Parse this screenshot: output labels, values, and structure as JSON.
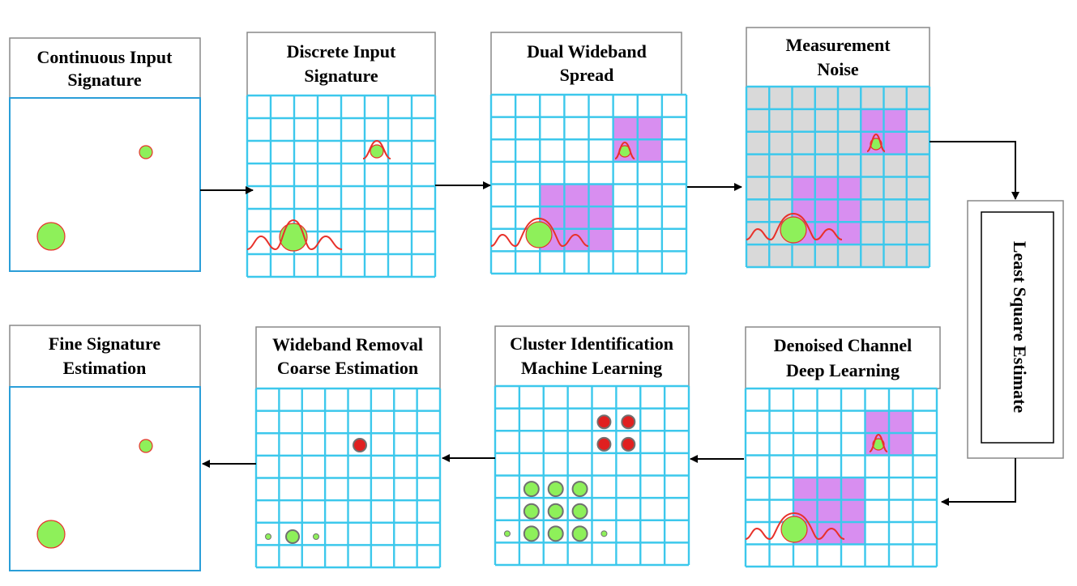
{
  "top_row": {
    "continuous": {
      "title_line1": "Continuous Input",
      "title_line2": "Signature"
    },
    "discrete": {
      "title_line1": "Discrete Input",
      "title_line2": "Signature"
    },
    "spread": {
      "title_line1": "Dual Wideband",
      "title_line2": "Spread"
    },
    "noise": {
      "title_line1": "Measurement",
      "title_line2": "Noise"
    }
  },
  "side": {
    "label": "Least Square Estimate"
  },
  "bottom_row": {
    "fine": {
      "title_line1": "Fine Signature",
      "title_line2": "Estimation"
    },
    "removal": {
      "title_line1": "Wideband Removal",
      "title_line2": "Coarse Estimation"
    },
    "cluster": {
      "title_line1": "Cluster Identification",
      "title_line2": "Machine Learning"
    },
    "denoised": {
      "title_line1": "Denoised Channel",
      "title_line2": "Deep Learning"
    }
  },
  "colors": {
    "grid_line": "#3cc8ec",
    "panel_border": "#2a9ed8",
    "purple_fill": "#d88ef0",
    "purple_border": "#9a8fb0",
    "noise_fill": "#d9d9d9",
    "green": "#8ef05a",
    "red": "#e8312a",
    "red_dot": "#e02020",
    "gray_ring": "#707070"
  }
}
